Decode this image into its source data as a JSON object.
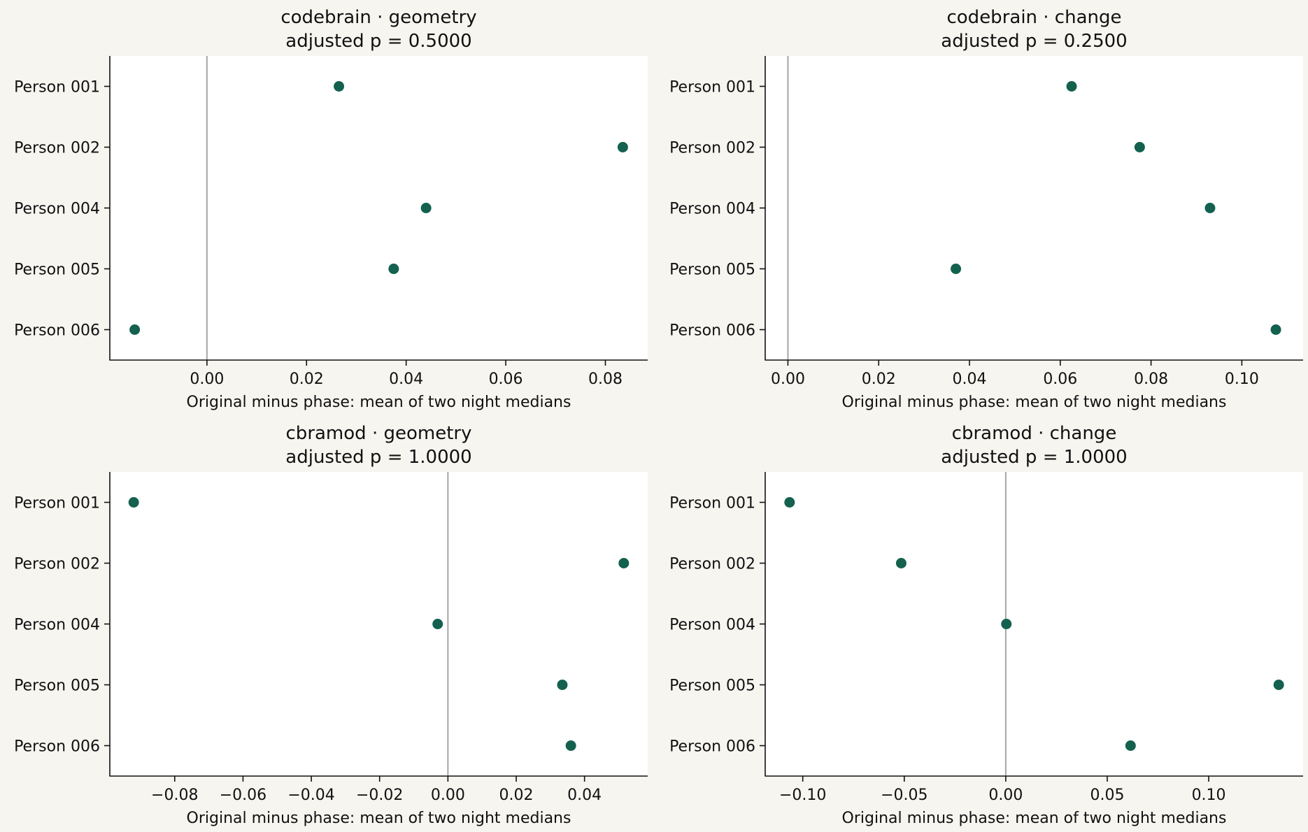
{
  "chart_data": [
    {
      "type": "scatter",
      "title": "codebrain · geometry",
      "subtitle": "adjusted p = 0.5000",
      "xlabel": "Original minus phase: mean of two night medians",
      "categories": [
        "Person 001",
        "Person 002",
        "Person 004",
        "Person 005",
        "Person 006"
      ],
      "values": [
        0.0265,
        0.0835,
        0.044,
        0.0375,
        -0.0145
      ],
      "xlim": [
        -0.0195,
        0.0885
      ],
      "xticks": [
        0.0,
        0.02,
        0.04,
        0.06,
        0.08
      ],
      "xtick_labels": [
        "0.00",
        "0.02",
        "0.04",
        "0.06",
        "0.08"
      ],
      "reference_x": 0
    },
    {
      "type": "scatter",
      "title": "codebrain · change",
      "subtitle": "adjusted p = 0.2500",
      "xlabel": "Original minus phase: mean of two night medians",
      "categories": [
        "Person 001",
        "Person 002",
        "Person 004",
        "Person 005",
        "Person 006"
      ],
      "values": [
        0.0625,
        0.0775,
        0.093,
        0.037,
        0.1075
      ],
      "xlim": [
        -0.005,
        0.1135
      ],
      "xticks": [
        0.0,
        0.02,
        0.04,
        0.06,
        0.08,
        0.1
      ],
      "xtick_labels": [
        "0.00",
        "0.02",
        "0.04",
        "0.06",
        "0.08",
        "0.10"
      ],
      "reference_x": 0
    },
    {
      "type": "scatter",
      "title": "cbramod · geometry",
      "subtitle": "adjusted p = 1.0000",
      "xlabel": "Original minus phase: mean of two night medians",
      "categories": [
        "Person 001",
        "Person 002",
        "Person 004",
        "Person 005",
        "Person 006"
      ],
      "values": [
        -0.092,
        0.0515,
        -0.003,
        0.0335,
        0.036
      ],
      "xlim": [
        -0.099,
        0.0585
      ],
      "xticks": [
        -0.08,
        -0.06,
        -0.04,
        -0.02,
        0.0,
        0.02,
        0.04
      ],
      "xtick_labels": [
        "−0.08",
        "−0.06",
        "−0.04",
        "−0.02",
        "0.00",
        "0.02",
        "0.04"
      ],
      "reference_x": 0
    },
    {
      "type": "scatter",
      "title": "cbramod · change",
      "subtitle": "adjusted p = 1.0000",
      "xlabel": "Original minus phase: mean of two night medians",
      "categories": [
        "Person 001",
        "Person 002",
        "Person 004",
        "Person 005",
        "Person 006"
      ],
      "values": [
        -0.1065,
        -0.0515,
        0.0003,
        0.1345,
        0.0615
      ],
      "xlim": [
        -0.1185,
        0.1465
      ],
      "xticks": [
        -0.1,
        -0.05,
        0.0,
        0.05,
        0.1
      ],
      "xtick_labels": [
        "−0.10",
        "−0.05",
        "0.00",
        "0.05",
        "0.10"
      ],
      "reference_x": 0
    }
  ],
  "colors": {
    "point": "#13614e",
    "reference_line": "#a6a6a6",
    "axis": "#111111",
    "page_background": "#f6f5f0",
    "plot_background": "#ffffff"
  }
}
